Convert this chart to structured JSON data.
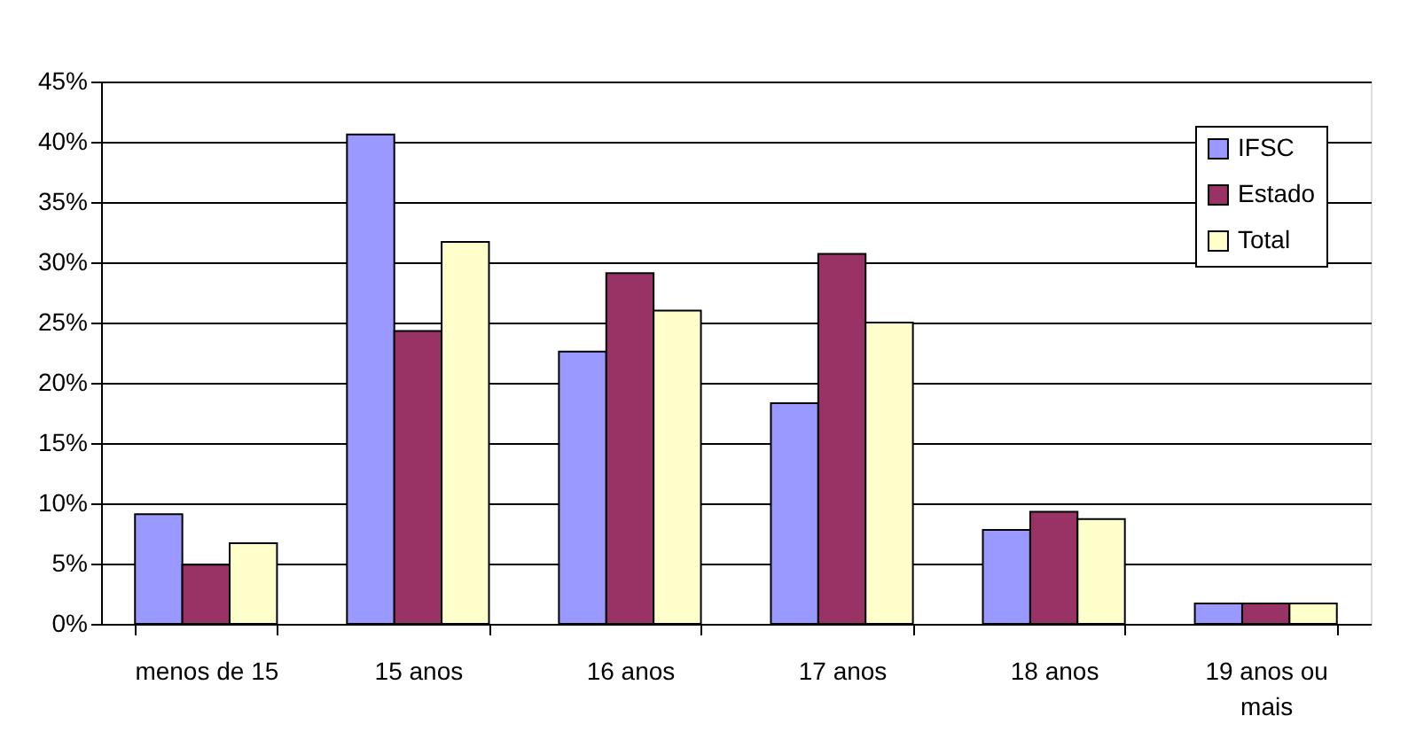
{
  "chart_data": {
    "type": "bar",
    "categories": [
      "menos de 15",
      "15 anos",
      "16 anos",
      "17 anos",
      "18 anos",
      "19 anos ou mais"
    ],
    "series": [
      {
        "name": "IFSC",
        "color": "#9999ff",
        "values": [
          9.1,
          40.6,
          22.6,
          18.3,
          7.8,
          1.7
        ]
      },
      {
        "name": "Estado",
        "color": "#993366",
        "values": [
          4.9,
          24.3,
          29.1,
          30.7,
          9.3,
          1.7
        ]
      },
      {
        "name": "Total",
        "color": "#ffffcc",
        "values": [
          6.7,
          31.7,
          26.0,
          25.0,
          8.7,
          1.7
        ]
      }
    ],
    "ylim": [
      0,
      45
    ],
    "yticks": [
      {
        "value": 0,
        "label": "0%"
      },
      {
        "value": 5,
        "label": "5%"
      },
      {
        "value": 10,
        "label": "10%"
      },
      {
        "value": 15,
        "label": "15%"
      },
      {
        "value": 20,
        "label": "20%"
      },
      {
        "value": 25,
        "label": "25%"
      },
      {
        "value": 30,
        "label": "30%"
      },
      {
        "value": 35,
        "label": "35%"
      },
      {
        "value": 40,
        "label": "40%"
      },
      {
        "value": 45,
        "label": "45%"
      }
    ],
    "grid": "y",
    "legend": "top right"
  }
}
